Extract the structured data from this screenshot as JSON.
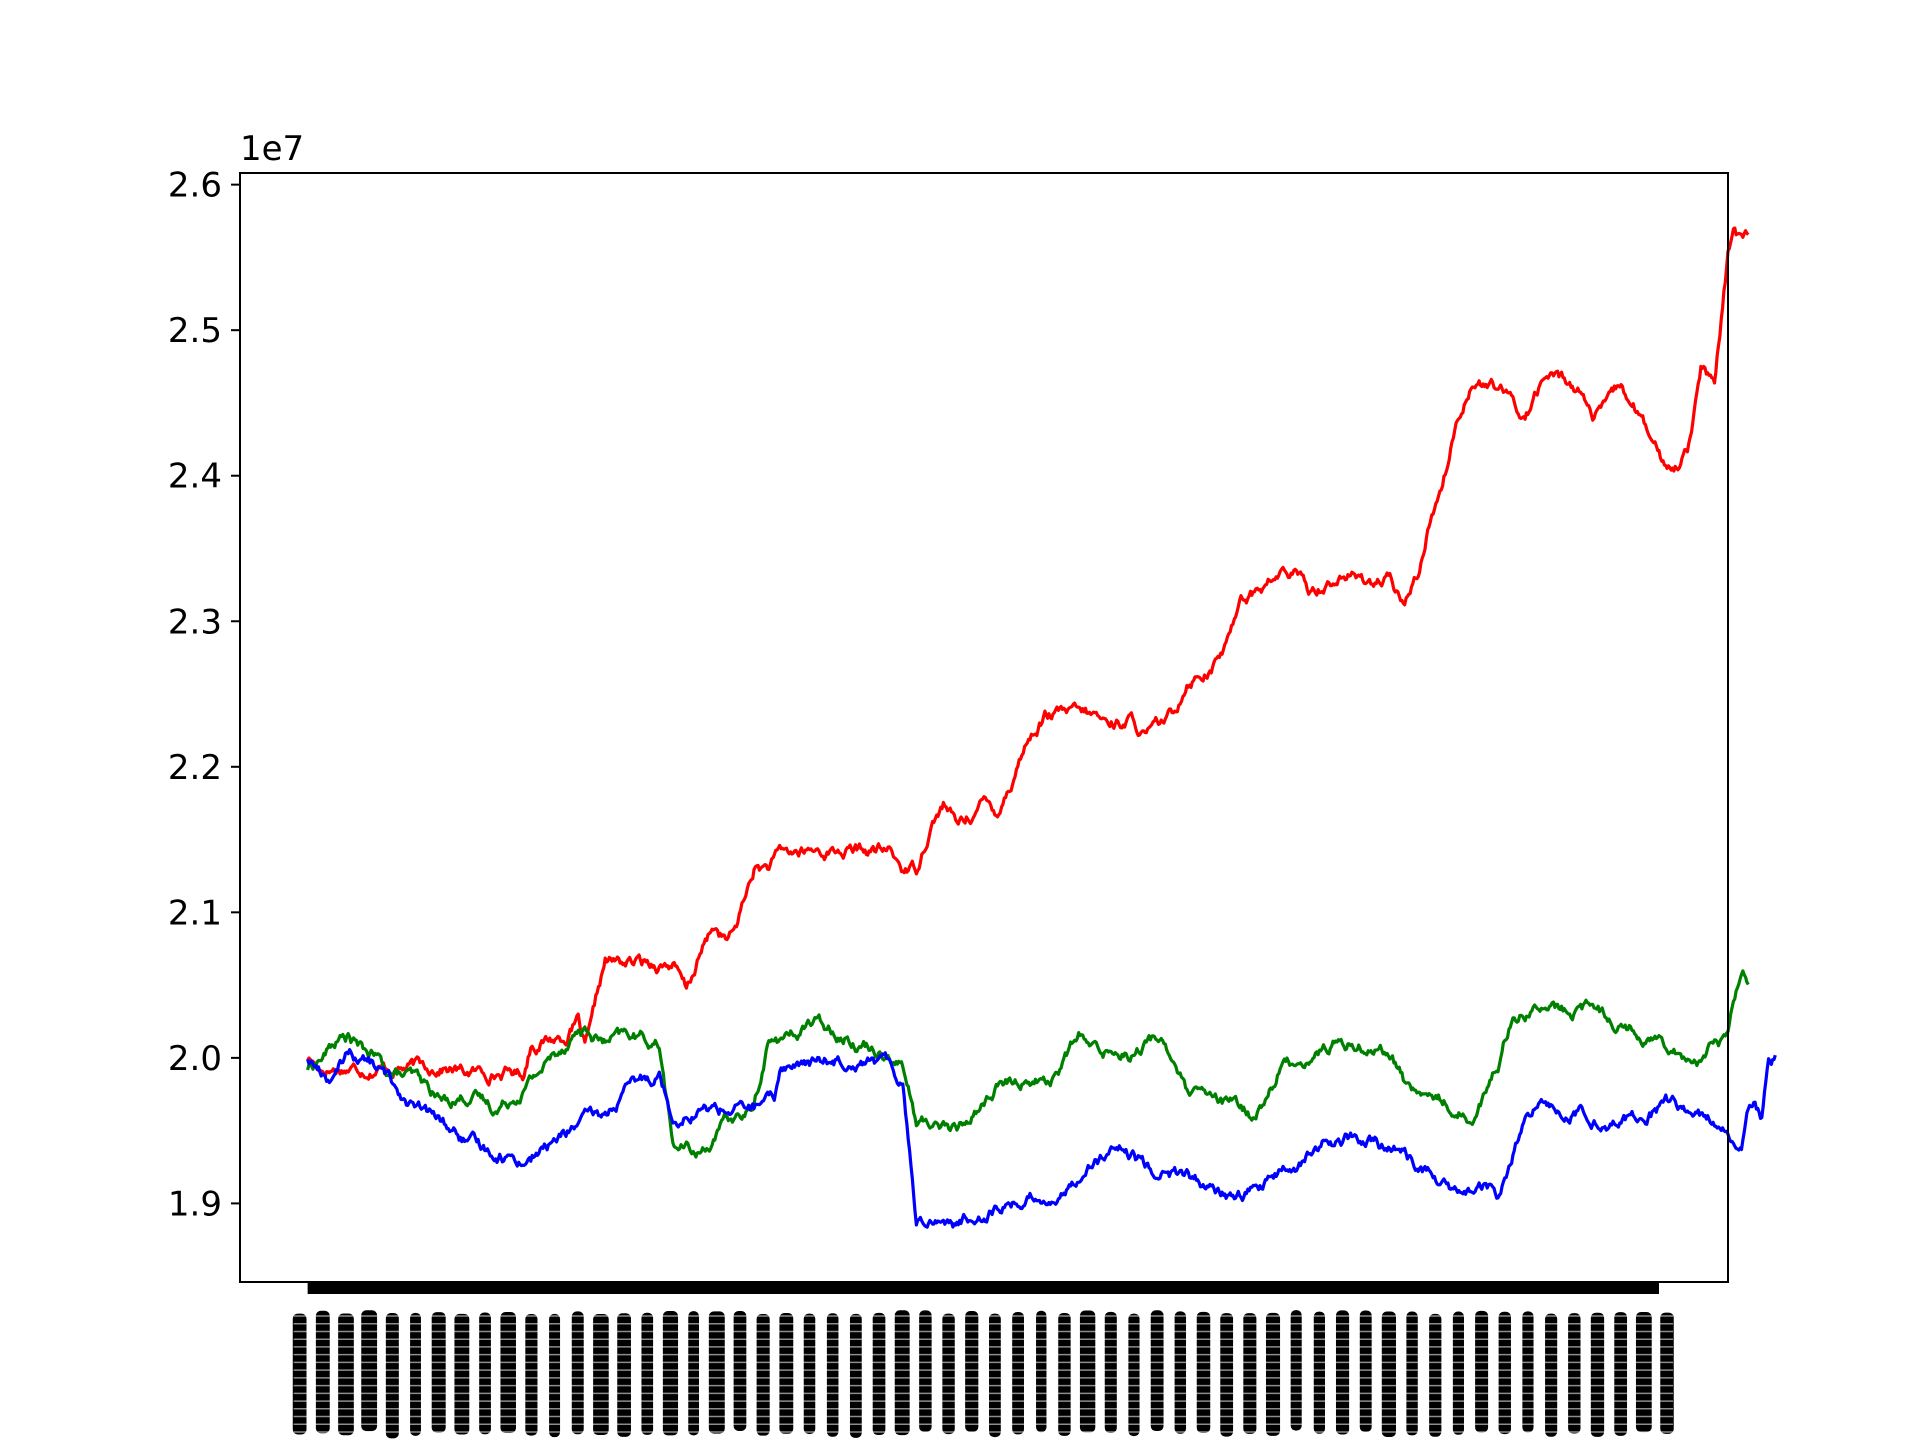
{
  "chart_data": {
    "type": "line",
    "title": "",
    "xlabel": "",
    "ylabel": "",
    "y_offset_label": "1e7",
    "ylim": [
      1.846,
      2.608
    ],
    "yticks": [
      {
        "value": 1.9,
        "label": "1.9"
      },
      {
        "value": 2.0,
        "label": "2.0"
      },
      {
        "value": 2.1,
        "label": "2.1"
      },
      {
        "value": 2.2,
        "label": "2.2"
      },
      {
        "value": 2.3,
        "label": "2.3"
      },
      {
        "value": 2.4,
        "label": "2.4"
      },
      {
        "value": 2.5,
        "label": "2.5"
      },
      {
        "value": 2.6,
        "label": "2.6"
      }
    ],
    "x_tick_labels_note": "x tick labels are densely overlapping and illegible",
    "x_count": 1000,
    "xlim": [
      -50,
      1050
    ],
    "grid": false,
    "legend": "none",
    "series": [
      {
        "color": "#ff0000",
        "keypoints": [
          [
            0,
            2.0
          ],
          [
            10,
            1.993
          ],
          [
            100,
            1.994
          ],
          [
            115,
            1.99
          ],
          [
            160,
            1.99
          ],
          [
            165,
            2.01
          ],
          [
            190,
            2.015
          ],
          [
            200,
            2.025
          ],
          [
            205,
            2.005
          ],
          [
            210,
            2.02
          ],
          [
            215,
            2.045
          ],
          [
            220,
            2.065
          ],
          [
            270,
            2.065
          ],
          [
            280,
            2.045
          ],
          [
            290,
            2.07
          ],
          [
            300,
            2.09
          ],
          [
            310,
            2.08
          ],
          [
            315,
            2.085
          ],
          [
            320,
            2.1
          ],
          [
            330,
            2.13
          ],
          [
            340,
            2.13
          ],
          [
            350,
            2.14
          ],
          [
            380,
            2.142
          ],
          [
            430,
            2.142
          ],
          [
            440,
            2.13
          ],
          [
            450,
            2.13
          ],
          [
            460,
            2.16
          ],
          [
            470,
            2.175
          ],
          [
            480,
            2.16
          ],
          [
            500,
            2.175
          ],
          [
            510,
            2.17
          ],
          [
            520,
            2.19
          ],
          [
            530,
            2.215
          ],
          [
            545,
            2.235
          ],
          [
            560,
            2.236
          ],
          [
            580,
            2.235
          ],
          [
            590,
            2.23
          ],
          [
            610,
            2.232
          ],
          [
            620,
            2.22
          ],
          [
            640,
            2.235
          ],
          [
            650,
            2.26
          ],
          [
            660,
            2.265
          ],
          [
            670,
            2.27
          ],
          [
            680,
            2.285
          ],
          [
            690,
            2.32
          ],
          [
            700,
            2.32
          ],
          [
            720,
            2.333
          ],
          [
            730,
            2.333
          ],
          [
            740,
            2.32
          ],
          [
            760,
            2.33
          ],
          [
            770,
            2.332
          ],
          [
            780,
            2.328
          ],
          [
            800,
            2.327
          ],
          [
            810,
            2.31
          ],
          [
            820,
            2.33
          ],
          [
            830,
            2.37
          ],
          [
            840,
            2.4
          ],
          [
            850,
            2.44
          ],
          [
            860,
            2.465
          ],
          [
            880,
            2.46
          ],
          [
            900,
            2.44
          ],
          [
            910,
            2.46
          ],
          [
            920,
            2.47
          ],
          [
            940,
            2.46
          ],
          [
            950,
            2.44
          ],
          [
            960,
            2.445
          ],
          [
            970,
            2.46
          ],
          [
            980,
            2.45
          ],
          [
            990,
            2.43
          ],
          [
            1000,
            2.41
          ],
          [
            1010,
            2.405
          ],
          [
            1020,
            2.42
          ],
          [
            1030,
            2.475
          ],
          [
            1040,
            2.46
          ],
          [
            1050,
            2.55
          ],
          [
            1055,
            2.57
          ],
          [
            1060,
            2.56
          ],
          [
            1065,
            2.565
          ]
        ]
      },
      {
        "color": "#008000",
        "keypoints": [
          [
            0,
            1.993
          ],
          [
            10,
            2.0
          ],
          [
            20,
            2.01
          ],
          [
            30,
            2.015
          ],
          [
            40,
            2.005
          ],
          [
            50,
            2.0
          ],
          [
            60,
            1.99
          ],
          [
            80,
            1.985
          ],
          [
            100,
            1.97
          ],
          [
            120,
            1.975
          ],
          [
            140,
            1.965
          ],
          [
            160,
            1.98
          ],
          [
            180,
            2.0
          ],
          [
            200,
            2.02
          ],
          [
            220,
            2.01
          ],
          [
            240,
            2.015
          ],
          [
            260,
            2.01
          ],
          [
            270,
            1.94
          ],
          [
            290,
            1.935
          ],
          [
            300,
            1.945
          ],
          [
            310,
            1.955
          ],
          [
            320,
            1.96
          ],
          [
            330,
            1.965
          ],
          [
            340,
            2.01
          ],
          [
            360,
            2.015
          ],
          [
            370,
            2.025
          ],
          [
            390,
            2.02
          ],
          [
            410,
            2.01
          ],
          [
            430,
            2.005
          ],
          [
            440,
            1.995
          ],
          [
            450,
            1.955
          ],
          [
            470,
            1.955
          ],
          [
            480,
            1.95
          ],
          [
            490,
            1.96
          ],
          [
            500,
            1.97
          ],
          [
            510,
            1.98
          ],
          [
            530,
            1.985
          ],
          [
            550,
            1.985
          ],
          [
            560,
            2.0
          ],
          [
            570,
            2.015
          ],
          [
            580,
            2.005
          ],
          [
            610,
            2.005
          ],
          [
            620,
            2.01
          ],
          [
            630,
            2.015
          ],
          [
            640,
            2.0
          ],
          [
            650,
            1.975
          ],
          [
            670,
            1.97
          ],
          [
            690,
            1.965
          ],
          [
            700,
            1.96
          ],
          [
            710,
            1.975
          ],
          [
            720,
            1.995
          ],
          [
            740,
            2.0
          ],
          [
            760,
            2.01
          ],
          [
            780,
            2.01
          ],
          [
            800,
            2.005
          ],
          [
            810,
            1.985
          ],
          [
            820,
            1.975
          ],
          [
            840,
            1.97
          ],
          [
            850,
            1.965
          ],
          [
            860,
            1.96
          ],
          [
            870,
            1.975
          ],
          [
            880,
            1.995
          ],
          [
            890,
            2.03
          ],
          [
            910,
            2.035
          ],
          [
            930,
            2.03
          ],
          [
            950,
            2.035
          ],
          [
            970,
            2.025
          ],
          [
            990,
            2.015
          ],
          [
            1010,
            2.01
          ],
          [
            1020,
            2.0
          ],
          [
            1030,
            2.0
          ],
          [
            1040,
            2.01
          ],
          [
            1050,
            2.015
          ],
          [
            1060,
            2.065
          ],
          [
            1065,
            2.058
          ]
        ]
      },
      {
        "color": "#0000ff",
        "keypoints": [
          [
            0,
            2.0
          ],
          [
            10,
            1.99
          ],
          [
            20,
            1.985
          ],
          [
            30,
            2.005
          ],
          [
            40,
            2.0
          ],
          [
            50,
            1.995
          ],
          [
            60,
            1.985
          ],
          [
            80,
            1.965
          ],
          [
            100,
            1.955
          ],
          [
            120,
            1.94
          ],
          [
            140,
            1.935
          ],
          [
            160,
            1.93
          ],
          [
            180,
            1.94
          ],
          [
            200,
            1.955
          ],
          [
            220,
            1.96
          ],
          [
            240,
            1.98
          ],
          [
            260,
            1.99
          ],
          [
            270,
            1.96
          ],
          [
            290,
            1.965
          ],
          [
            310,
            1.965
          ],
          [
            330,
            1.965
          ],
          [
            345,
            1.97
          ],
          [
            350,
            1.995
          ],
          [
            370,
            1.995
          ],
          [
            390,
            2.0
          ],
          [
            410,
            2.0
          ],
          [
            430,
            1.995
          ],
          [
            440,
            1.985
          ],
          [
            450,
            1.89
          ],
          [
            470,
            1.89
          ],
          [
            480,
            1.885
          ],
          [
            500,
            1.895
          ],
          [
            520,
            1.9
          ],
          [
            540,
            1.905
          ],
          [
            560,
            1.905
          ],
          [
            570,
            1.92
          ],
          [
            580,
            1.93
          ],
          [
            600,
            1.935
          ],
          [
            620,
            1.925
          ],
          [
            640,
            1.92
          ],
          [
            660,
            1.915
          ],
          [
            670,
            1.905
          ],
          [
            690,
            1.905
          ],
          [
            710,
            1.915
          ],
          [
            730,
            1.925
          ],
          [
            750,
            1.94
          ],
          [
            770,
            1.945
          ],
          [
            790,
            1.94
          ],
          [
            810,
            1.935
          ],
          [
            830,
            1.92
          ],
          [
            850,
            1.905
          ],
          [
            870,
            1.91
          ],
          [
            880,
            1.905
          ],
          [
            890,
            1.93
          ],
          [
            900,
            1.955
          ],
          [
            910,
            1.965
          ],
          [
            930,
            1.965
          ],
          [
            950,
            1.96
          ],
          [
            970,
            1.955
          ],
          [
            990,
            1.96
          ],
          [
            1010,
            1.97
          ],
          [
            1030,
            1.96
          ],
          [
            1040,
            1.955
          ],
          [
            1050,
            1.945
          ],
          [
            1060,
            1.945
          ],
          [
            1065,
            1.965
          ],
          [
            1070,
            1.975
          ],
          [
            1075,
            1.96
          ],
          [
            1080,
            2.005
          ],
          [
            1085,
            2.003
          ]
        ]
      }
    ]
  }
}
